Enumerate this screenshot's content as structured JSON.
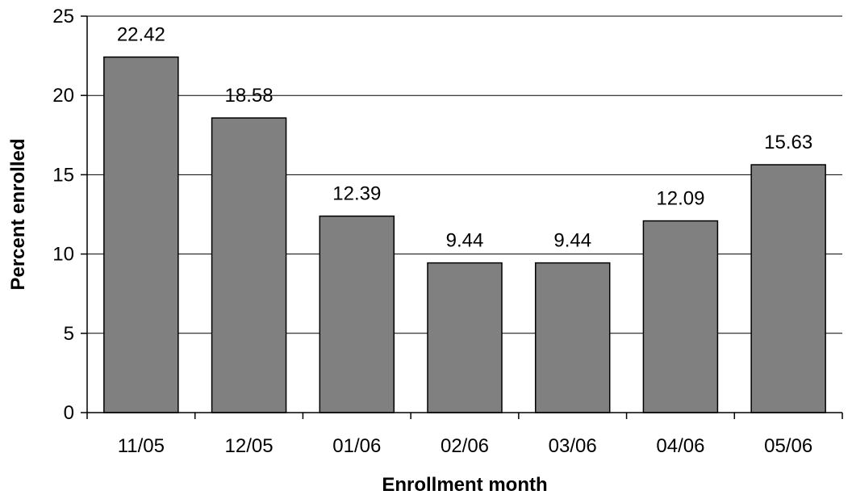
{
  "chart_data": {
    "type": "bar",
    "categories": [
      "11/05",
      "12/05",
      "01/06",
      "02/06",
      "03/06",
      "04/06",
      "05/06"
    ],
    "values": [
      22.42,
      18.58,
      12.39,
      9.44,
      9.44,
      12.09,
      15.63
    ],
    "data_labels": [
      "22.42",
      "18.58",
      "12.39",
      "9.44",
      "9.44",
      "12.09",
      "15.63"
    ],
    "xlabel": "Enrollment month",
    "ylabel": "Percent enrolled",
    "ylim": [
      0,
      25
    ],
    "yticks": [
      0,
      5,
      10,
      15,
      20,
      25
    ],
    "grid": true,
    "legend": "none",
    "bar_color": "#808080"
  }
}
